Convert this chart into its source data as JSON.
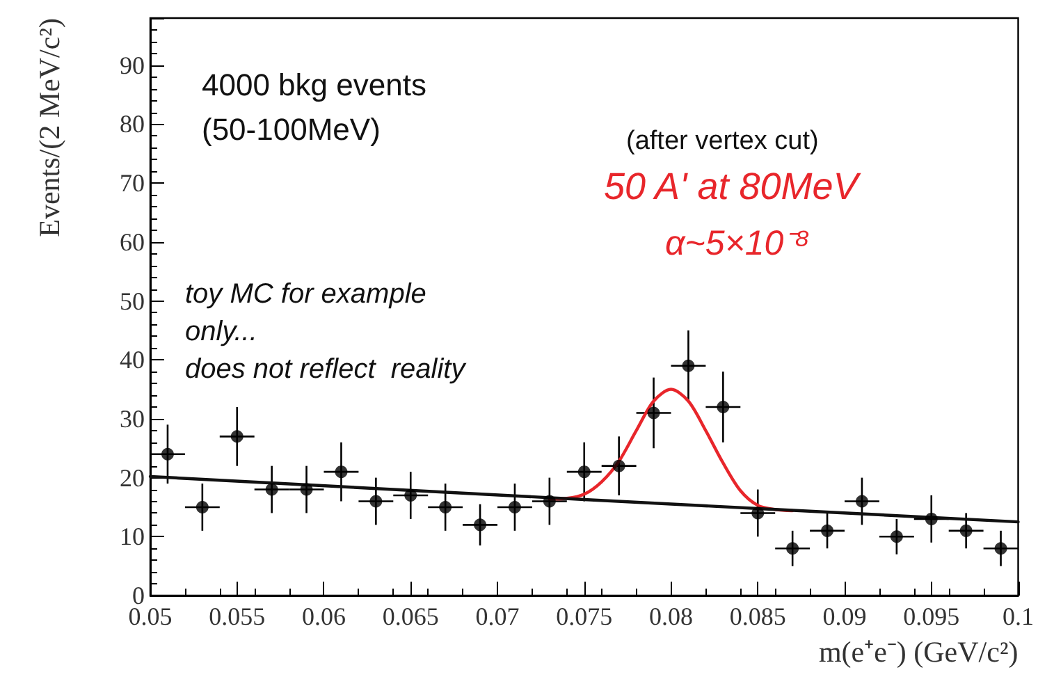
{
  "chart_data": {
    "type": "scatter",
    "xlabel": "m(e⁺e⁻) (GeV/c²)",
    "ylabel": "Events/(2 MeV/c²)",
    "annotations": [
      "4000 bkg events",
      "(50-100MeV)",
      "(after vertex cut)",
      "50 A' at 80MeV",
      "α~5×10⁻⁸",
      "toy MC for example\nonly...\ndoes not reflect  reality"
    ],
    "x": [
      0.051,
      0.053,
      0.055,
      0.057,
      0.059,
      0.061,
      0.063,
      0.065,
      0.067,
      0.069,
      0.071,
      0.073,
      0.075,
      0.077,
      0.079,
      0.081,
      0.083,
      0.085,
      0.087,
      0.089,
      0.091,
      0.093,
      0.095,
      0.097,
      0.099
    ],
    "series": [
      {
        "color": "#000000",
        "marker": "circle",
        "values": [
          24,
          15,
          27,
          18,
          18,
          21,
          16,
          17,
          15,
          12,
          15,
          16,
          21,
          22,
          31,
          39,
          32,
          14,
          8,
          11,
          16,
          10,
          13,
          11,
          8
        ],
        "errors": [
          5,
          4,
          5,
          4,
          4,
          5,
          4,
          4,
          4,
          3.5,
          4,
          4,
          5,
          5,
          6,
          6,
          6,
          4,
          3,
          3,
          4,
          3,
          4,
          3,
          3
        ],
        "xerrors": [
          0.001,
          0.001,
          0.001,
          0.001,
          0.001,
          0.001,
          0.001,
          0.001,
          0.001,
          0.001,
          0.001,
          0.001,
          0.001,
          0.001,
          0.001,
          0.001,
          0.001,
          0.001,
          0.001,
          0.001,
          0.001,
          0.001,
          0.001,
          0.001,
          0.001
        ]
      },
      {
        "type": "line",
        "color": "#e8262b",
        "x": [
          0.073,
          0.074,
          0.075,
          0.076,
          0.077,
          0.078,
          0.079,
          0.08,
          0.081,
          0.082,
          0.083,
          0.084,
          0.085,
          0.086,
          0.087
        ],
        "values": [
          16.4,
          16.5,
          17.2,
          19.3,
          22.8,
          28,
          33,
          35,
          33,
          28,
          22.5,
          17.8,
          15.3,
          14.6,
          14.4
        ]
      },
      {
        "type": "line",
        "color": "#111111",
        "x": [
          0.05,
          0.075,
          0.1
        ],
        "values": [
          20.2,
          16.3,
          12.5
        ]
      }
    ],
    "xlim": [
      0.05,
      0.1
    ],
    "xticks": [
      0.05,
      0.055,
      0.06,
      0.065,
      0.07,
      0.075,
      0.08,
      0.085,
      0.09,
      0.095,
      0.1
    ],
    "ylim": [
      0,
      98
    ],
    "yticks": [
      0,
      10,
      20,
      30,
      40,
      50,
      60,
      70,
      80,
      90
    ],
    "grid": false,
    "line_style": "solid"
  }
}
